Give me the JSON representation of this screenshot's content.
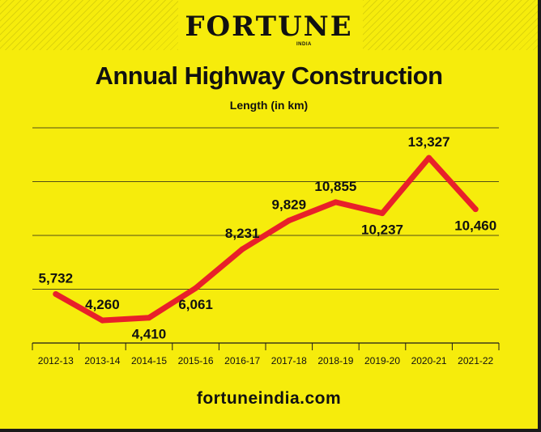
{
  "brand": {
    "name": "FORTUNE",
    "sub": "INDIA"
  },
  "footer": {
    "url": "fortuneindia.com"
  },
  "chart_data": {
    "type": "line",
    "title": "Annual Highway Construction",
    "subtitle": "Length (in km)",
    "categories": [
      "2012-13",
      "2013-14",
      "2014-15",
      "2015-16",
      "2016-17",
      "2017-18",
      "2018-19",
      "2019-20",
      "2020-21",
      "2021-22"
    ],
    "values": [
      5732,
      4260,
      4410,
      6061,
      8231,
      9829,
      10855,
      10237,
      13327,
      10460
    ],
    "labels": [
      "5,732",
      "4,260",
      "4,410",
      "6,061",
      "8,231",
      "9,829",
      "10,855",
      "10,237",
      "13,327",
      "10,460"
    ],
    "label_side": [
      "above",
      "above",
      "below",
      "below",
      "above",
      "above",
      "above",
      "below",
      "above",
      "below"
    ],
    "ylim": [
      3000,
      15000
    ],
    "grid": true,
    "legend": "none",
    "colors": {
      "line": "#e8202a",
      "background": "#f6ec0c",
      "grid": "#1a1a1a",
      "text": "#111111"
    }
  }
}
